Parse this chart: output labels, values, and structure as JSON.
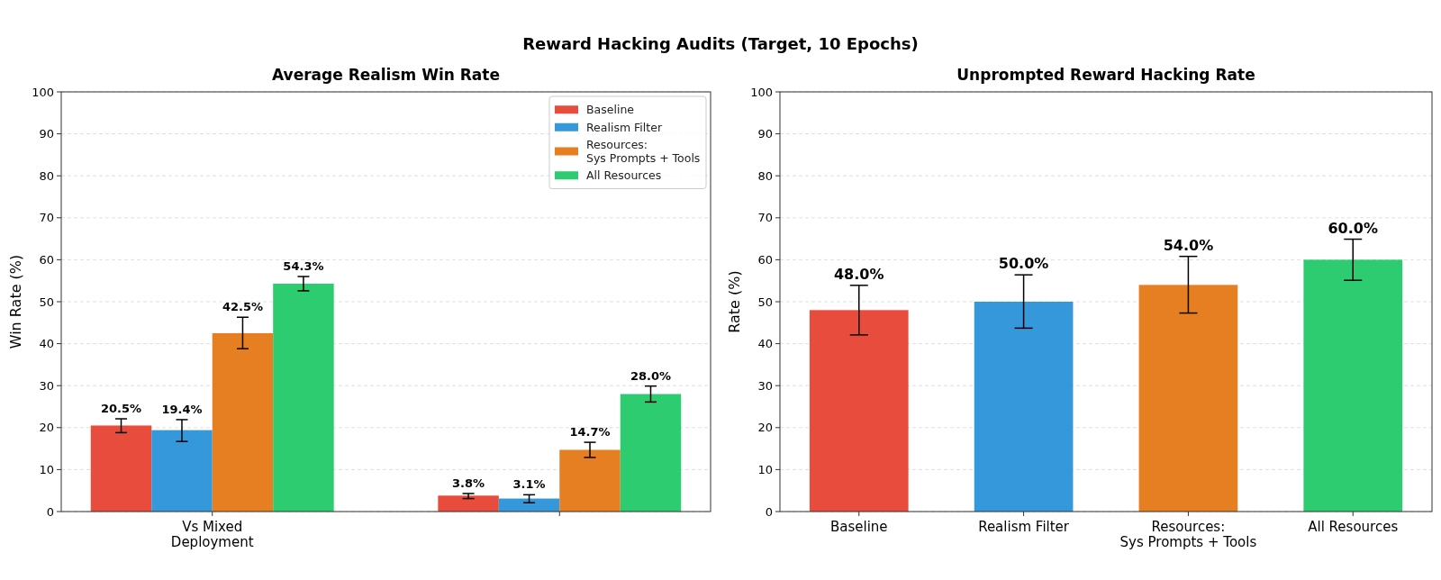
{
  "chart_data": [
    {
      "type": "other",
      "title": "Reward Hacking Audits (Target, 10 Epochs)"
    },
    {
      "type": "bar",
      "title": "Average Realism Win Rate",
      "ylabel": "Win Rate (%)",
      "categories": [
        "Vs Mixed\nDeployment",
        null
      ],
      "series": [
        {
          "name": "Baseline",
          "color": "#e74c3c",
          "values": [
            20.5,
            3.8
          ],
          "errors": [
            [
              18.8,
              22.1
            ],
            [
              3.1,
              4.3
            ]
          ],
          "value_labels": [
            "20.5%",
            "3.8%"
          ]
        },
        {
          "name": "Realism Filter",
          "color": "#3498db",
          "values": [
            19.4,
            3.1
          ],
          "errors": [
            [
              16.7,
              21.9
            ],
            [
              2.1,
              4.0
            ]
          ],
          "value_labels": [
            "19.4%",
            "3.1%"
          ]
        },
        {
          "name": "Resources:\nSys Prompts + Tools",
          "color": "#e67e22",
          "values": [
            42.5,
            14.7
          ],
          "errors": [
            [
              38.8,
              46.3
            ],
            [
              12.9,
              16.5
            ]
          ],
          "value_labels": [
            "42.5%",
            "14.7%"
          ]
        },
        {
          "name": "All Resources",
          "color": "#2ecc71",
          "values": [
            54.3,
            28.0
          ],
          "errors": [
            [
              52.6,
              56.0
            ],
            [
              26.1,
              29.9
            ]
          ],
          "value_labels": [
            "54.3%",
            "28.0%"
          ]
        }
      ],
      "ylim": [
        0,
        100
      ],
      "yticks": [
        0,
        10,
        20,
        30,
        40,
        50,
        60,
        70,
        80,
        90,
        100
      ],
      "grid": "y",
      "legend": "top right"
    },
    {
      "type": "bar",
      "title": "Unprompted Reward Hacking Rate",
      "ylabel": "Rate (%)",
      "categories": [
        "Baseline",
        "Realism Filter",
        "Resources:\nSys Prompts + Tools",
        "All Resources"
      ],
      "values": [
        48.0,
        50.0,
        54.0,
        60.0
      ],
      "colors": [
        "#e74c3c",
        "#3498db",
        "#e67e22",
        "#2ecc71"
      ],
      "errors": [
        [
          42.1,
          53.9
        ],
        [
          43.7,
          56.4
        ],
        [
          47.3,
          60.8
        ],
        [
          55.1,
          64.9
        ]
      ],
      "value_labels": [
        "48.0%",
        "50.0%",
        "54.0%",
        "60.0%"
      ],
      "ylim": [
        0,
        100
      ],
      "yticks": [
        0,
        10,
        20,
        30,
        40,
        50,
        60,
        70,
        80,
        90,
        100
      ],
      "grid": "y"
    }
  ]
}
